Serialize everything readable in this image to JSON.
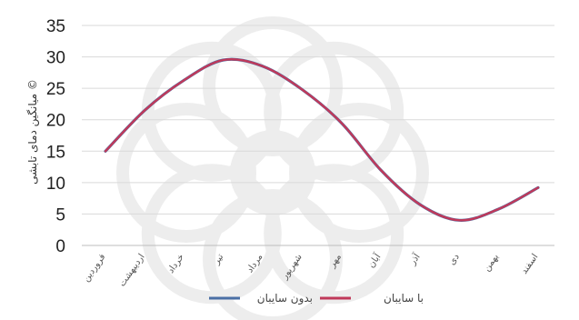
{
  "chart_data": {
    "type": "line",
    "title": "",
    "xlabel": "",
    "ylabel": "میانگین دمای تابشی ©",
    "ylim": [
      0,
      35
    ],
    "yticks": [
      0,
      5,
      10,
      15,
      20,
      25,
      30,
      35
    ],
    "grid": true,
    "legend": "bottom",
    "categories": [
      "فروردین",
      "اردیبهشت",
      "خرداد",
      "تیر",
      "مرداد",
      "شهریور",
      "مهر",
      "آبان",
      "آذر",
      "دی",
      "بهمن",
      "اسفند"
    ],
    "series": [
      {
        "name": "بدون سایبان",
        "color": "#4a6fa5",
        "values": [
          15.0,
          21.5,
          26.3,
          29.5,
          28.5,
          24.8,
          19.5,
          12.0,
          6.5,
          4.0,
          5.8,
          9.2
        ]
      },
      {
        "name": "با سایبان",
        "color": "#c0395a",
        "values": [
          15.0,
          21.5,
          26.3,
          29.5,
          28.5,
          24.8,
          19.5,
          12.0,
          6.5,
          4.0,
          5.8,
          9.2
        ]
      }
    ]
  }
}
